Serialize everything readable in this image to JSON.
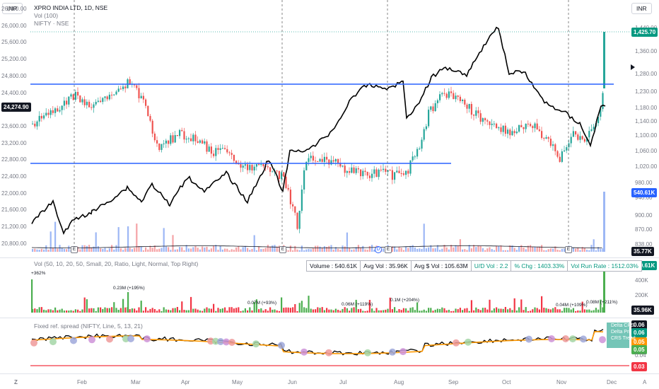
{
  "symbol": {
    "title": "XPRO INDIA LTD, 1D, NSE",
    "vol_label": "Vol (100)",
    "compare": "NIFTY · NSE"
  },
  "currency_left": "INR",
  "currency_right": "INR",
  "left_axis": [
    "26,400.00",
    "26,000.00",
    "25,600.00",
    "25,200.00",
    "24,800.00",
    "24,400.00",
    "24,000.00",
    "23,600.00",
    "23,200.00",
    "22,800.00",
    "22,400.00",
    "22,000.00",
    "21,600.00",
    "21,200.00",
    "20,800.00"
  ],
  "right_axis": [
    "1,440.00",
    "1,360.00",
    "1,280.00",
    "1,230.00",
    "1,180.00",
    "1,140.00",
    "1,100.00",
    "1,060.00",
    "1,020.00",
    "980.00",
    "940.00",
    "900.00",
    "870.00",
    "838.00"
  ],
  "tags": {
    "nifty_price": "24,274.90",
    "last_price": "1,425.70",
    "volume_main": "540.61K",
    "avg_vol_main": "35.77K",
    "volume_pane": "540.61K",
    "avg_vol_pane": "35.96K",
    "spread_1": "0.06",
    "spread_2": "0.06",
    "spread_3": "0.05",
    "spread_4": "0.05",
    "spread_low": "0.03"
  },
  "vol_pane": {
    "legend": "Vol (50, 10, 20, 50, Small, 20, Ratio, Light, Normal, Top Right)",
    "axis": [
      "400K",
      "200K"
    ],
    "stats": {
      "volume": "Volume : 540.61K",
      "avg_vol": "Avg Vol : 35.96K",
      "avg_dollar": "Avg $ Vol : 105.63M",
      "ud_vol": "U/D Vol : 2.2",
      "pct_chg": "% Chg : 1403.33%",
      "run_rate": "Vol Run Rate : 1512.03%"
    },
    "notes": {
      "n1": "+362%",
      "n2": "0.23M (+195%)",
      "n3": "0.07M (+93%)",
      "n4": "0.06M (+119%)",
      "n5": "0.1M (+204%)",
      "n6": "0.04M (+109%)",
      "n7": "0.08M (+211%)"
    }
  },
  "spread_pane": {
    "legend": "Fixed ref. spread (NIFTY, Line, 5, 13, 21)",
    "labels": [
      "Delta CRS",
      "Delta Pri",
      "CRS Trend"
    ],
    "axis": [
      "0.04"
    ]
  },
  "x_axis": [
    "Feb",
    "Mar",
    "Apr",
    "May",
    "Jun",
    "Jul",
    "Aug",
    "Sep",
    "Oct",
    "Nov",
    "Dec"
  ],
  "event_marks": {
    "e": "E",
    "d": "D"
  },
  "tv_logo": "Z",
  "auto_label": "A",
  "colors": {
    "up": "#26a69a",
    "down": "#ef5350",
    "level": "#2962ff",
    "vol_up": "#4caf50",
    "vol_down": "#f23645",
    "ma": "#ff9800"
  }
}
